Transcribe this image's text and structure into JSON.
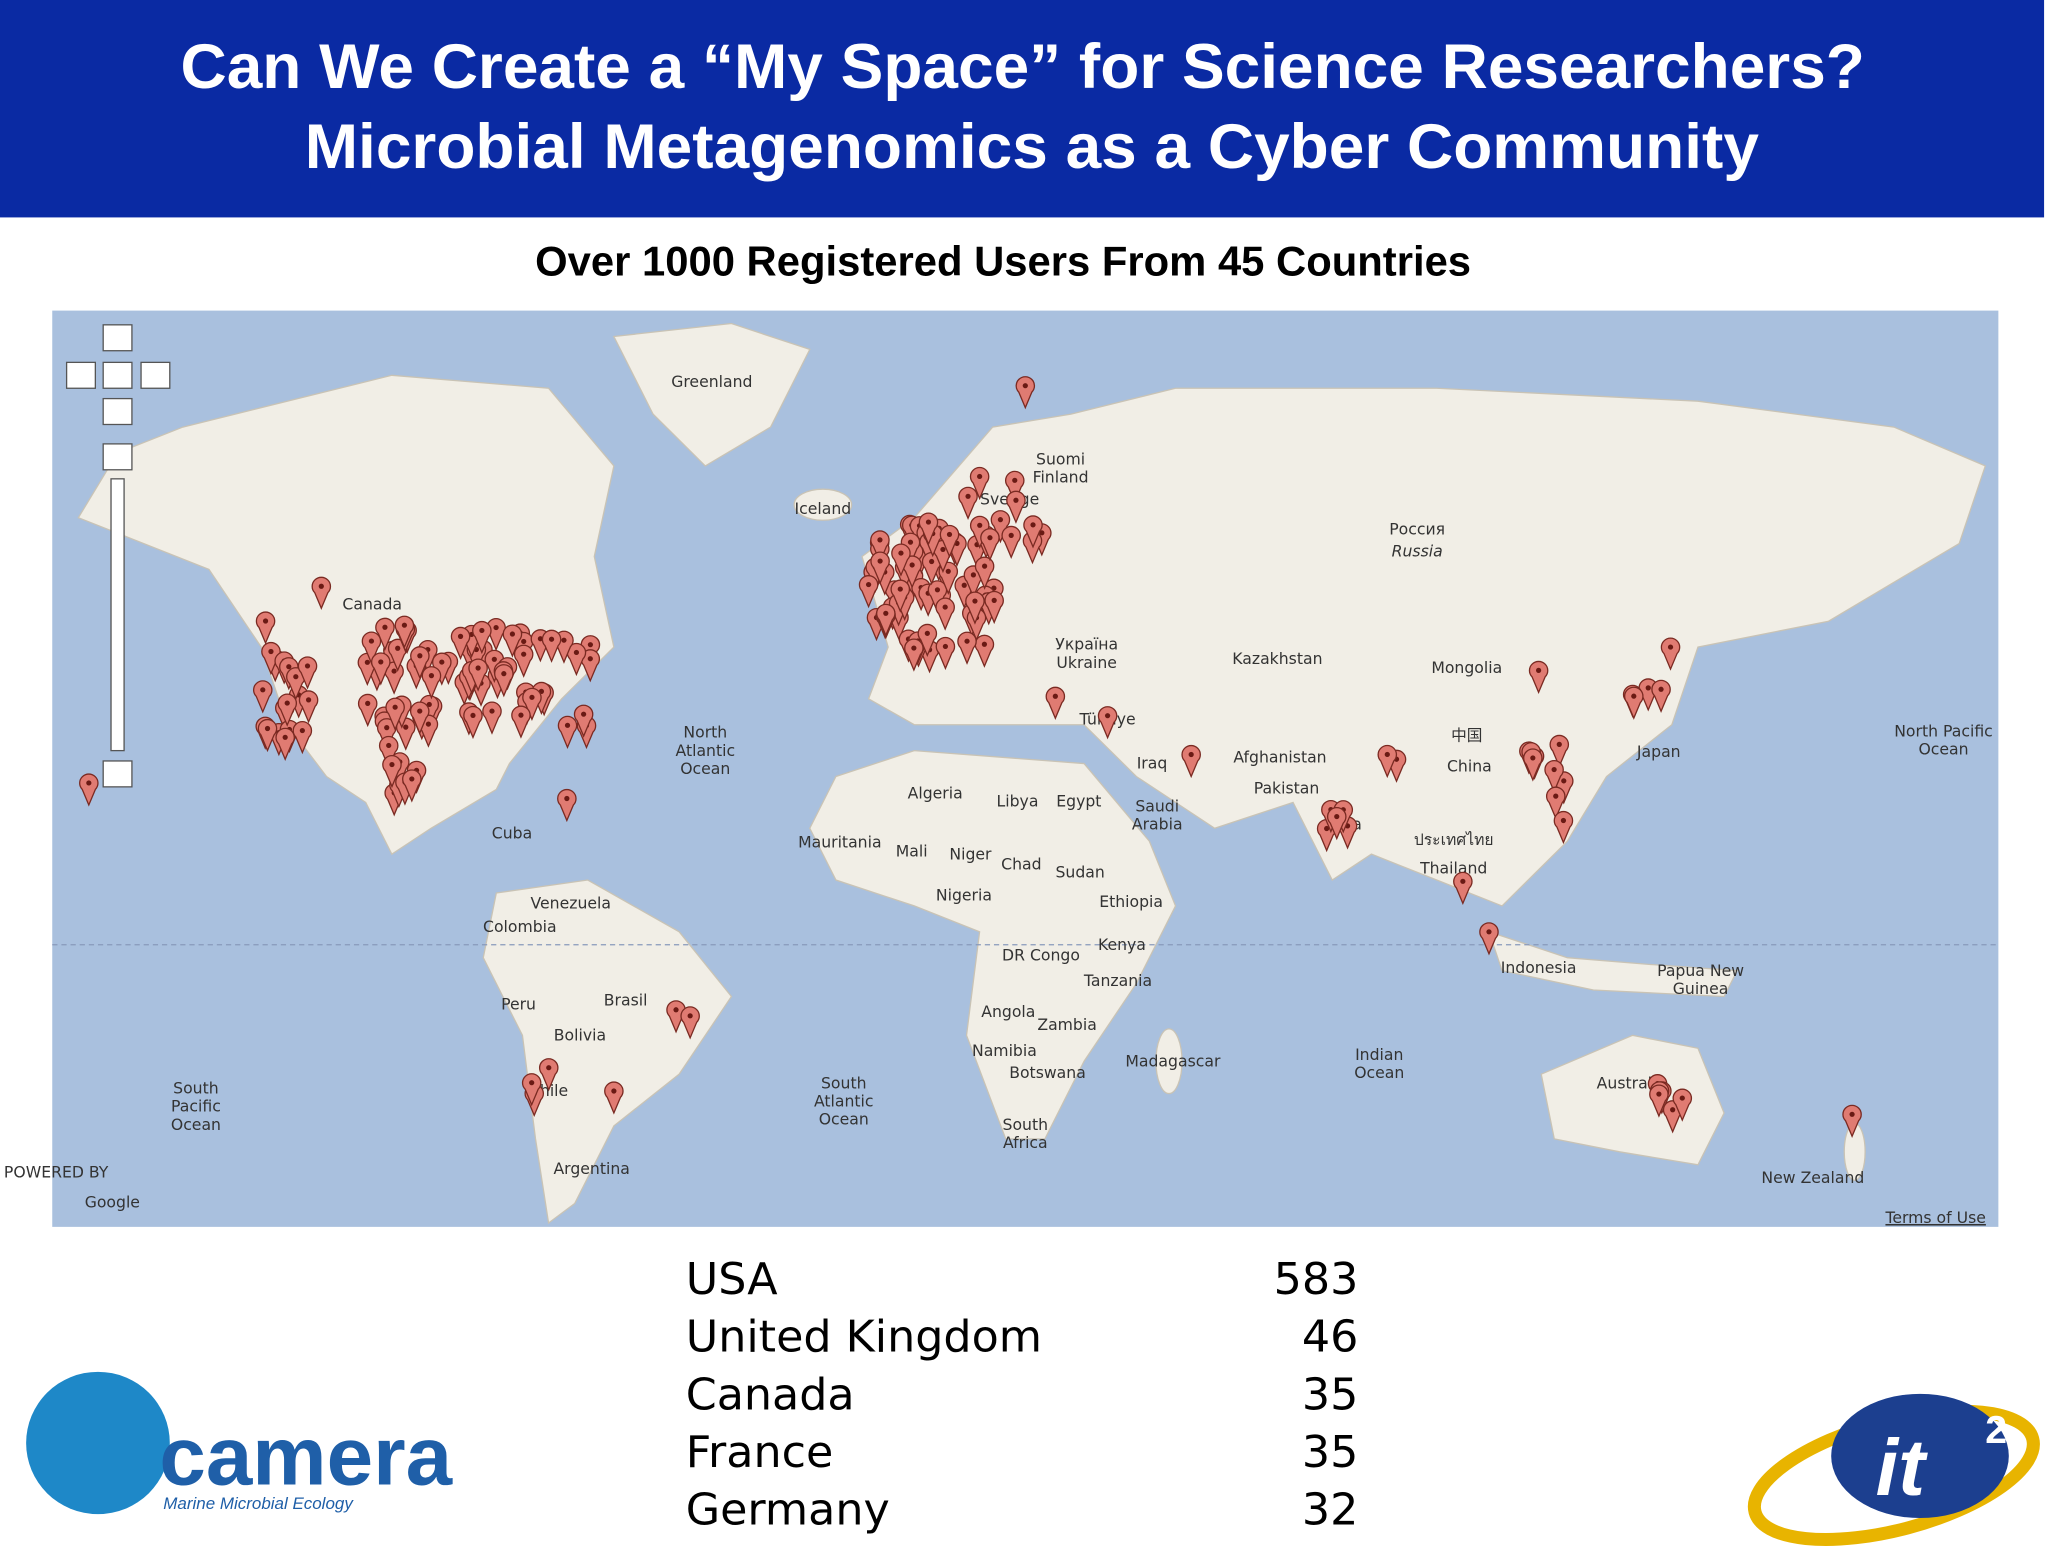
{
  "header": {
    "title_lines": [
      "Can We Create a “My Space” for Science Researchers?",
      "Microbial Metagenomics as a Cyber Community"
    ]
  },
  "subtitle": "Over 1000 Registered Users From 45 Countries",
  "map": {
    "labels": [
      [
        "Greenland"
      ],
      [
        "Iceland"
      ],
      [
        "Suomi",
        "Finland"
      ],
      [
        "Sverige"
      ],
      [
        "Россия"
      ],
      [
        "Russia"
      ],
      [
        "Canada"
      ],
      [
        "Kazakhstan"
      ],
      [
        "Mongolia"
      ],
      [
        "Україна",
        "Ukraine"
      ],
      [
        "Türkiye"
      ],
      [
        "North",
        "Atlantic",
        "Ocean"
      ],
      [
        "Iraq"
      ],
      [
        "Afghanistan"
      ],
      [
        "Pakistan"
      ],
      [
        "中国"
      ],
      [
        "China"
      ],
      [
        "India"
      ],
      [
        "Japan"
      ],
      [
        "North Pacific",
        "Ocean"
      ],
      [
        "Algeria"
      ],
      [
        "Libya"
      ],
      [
        "Egypt"
      ],
      [
        "Saudi",
        "Arabia"
      ],
      [
        "Mauritania"
      ],
      [
        "Mali"
      ],
      [
        "Niger"
      ],
      [
        "Chad"
      ],
      [
        "Sudan"
      ],
      [
        "ประเทศไทย"
      ],
      [
        "Thailand"
      ],
      [
        "Cuba"
      ],
      [
        "Nigeria"
      ],
      [
        "Ethiopia"
      ],
      [
        "Venezuela"
      ],
      [
        "Colombia"
      ],
      [
        "Kenya"
      ],
      [
        "DR Congo"
      ],
      [
        "Tanzania"
      ],
      [
        "Indonesia"
      ],
      [
        "Papua New",
        "Guinea"
      ],
      [
        "Peru"
      ],
      [
        "Brasil"
      ],
      [
        "Bolivia"
      ],
      [
        "Angola"
      ],
      [
        "Zambia"
      ],
      [
        "Namibia"
      ],
      [
        "Botswana"
      ],
      [
        "Madagascar"
      ],
      [
        "Indian",
        "Ocean"
      ],
      [
        "South",
        "Pacific",
        "Ocean"
      ],
      [
        "South",
        "Atlantic",
        "Ocean"
      ],
      [
        "South",
        "Africa"
      ],
      [
        "Australia"
      ],
      [
        "Chile"
      ],
      [
        "Argentina"
      ],
      [
        "New Zealand"
      ],
      [
        "Terms of Use"
      ],
      [
        "POWERED BY"
      ],
      [
        "Google"
      ]
    ]
  },
  "table": {
    "rows": [
      [
        "USA",
        583
      ],
      [
        "United Kingdom",
        46
      ],
      [
        "Canada",
        35
      ],
      [
        "France",
        35
      ],
      [
        "Germany",
        32
      ]
    ]
  },
  "logos": {
    "camera": "camera",
    "camera_tagline": "Marine Microbial Ecology",
    "it": "it",
    "it_sup": "2"
  }
}
